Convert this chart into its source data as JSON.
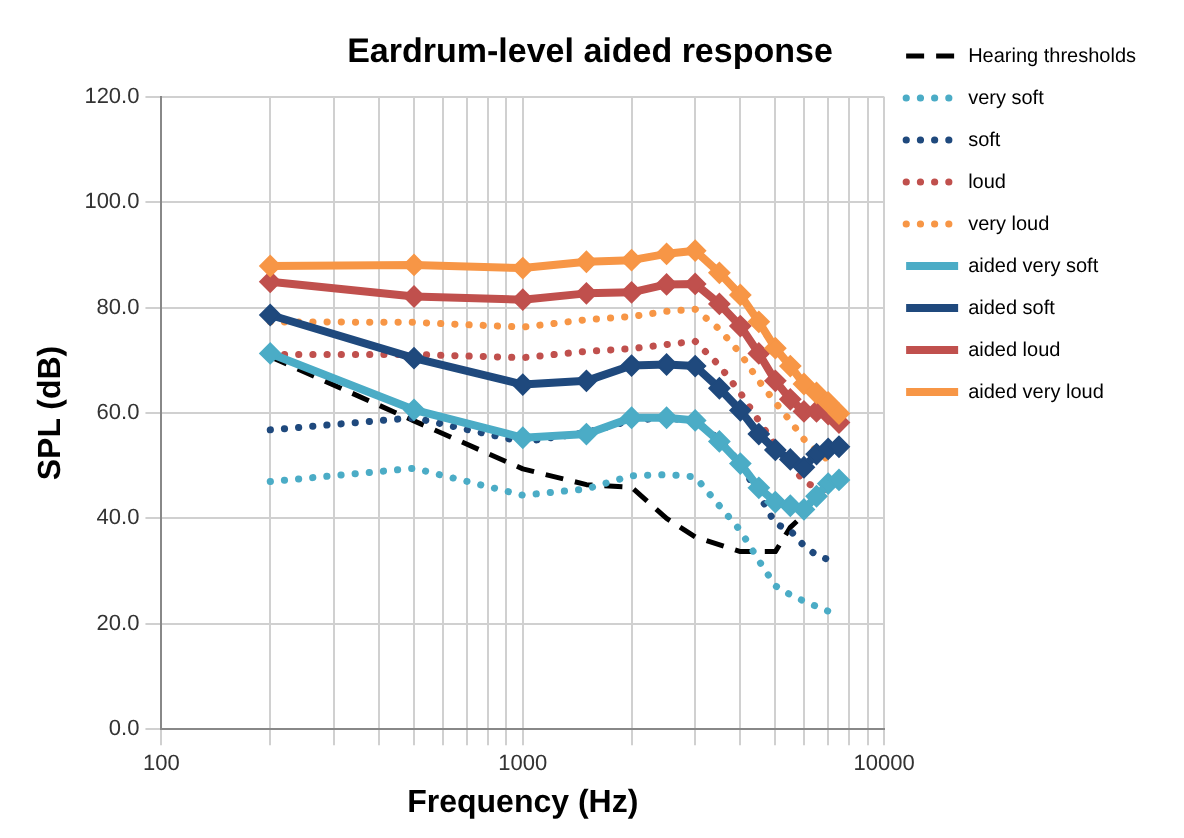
{
  "chart_data": {
    "type": "line",
    "title": "Eardrum-level aided response",
    "xlabel": "Frequency (Hz)",
    "ylabel": "SPL (dB)",
    "log": "x",
    "grid": true,
    "legend": "right",
    "xlim": [
      100,
      10000
    ],
    "xticks": [
      100,
      {
        "value": 200,
        "label": null
      },
      {
        "value": 300,
        "label": null
      },
      {
        "value": 400,
        "label": null
      },
      {
        "value": 500,
        "label": null
      },
      {
        "value": 600,
        "label": null
      },
      {
        "value": 700,
        "label": null
      },
      {
        "value": 800,
        "label": null
      },
      {
        "value": 900,
        "label": null
      },
      1000,
      {
        "value": 2000,
        "label": null
      },
      {
        "value": 3000,
        "label": null
      },
      {
        "value": 4000,
        "label": null
      },
      {
        "value": 5000,
        "label": null
      },
      {
        "value": 6000,
        "label": null
      },
      {
        "value": 7000,
        "label": null
      },
      {
        "value": 8000,
        "label": null
      },
      {
        "value": 9000,
        "label": null
      },
      10000
    ],
    "ylim": [
      0,
      120
    ],
    "yticks": [
      {
        "value": 0,
        "label": "0.0"
      },
      {
        "value": 20,
        "label": "20.0"
      },
      {
        "value": 40,
        "label": "40.0"
      },
      {
        "value": 60,
        "label": "60.0"
      },
      {
        "value": 80,
        "label": "80.0"
      },
      {
        "value": 100,
        "label": "100.0"
      },
      {
        "value": 120,
        "label": "120.0"
      }
    ],
    "series": [
      {
        "name": "Hearing thresholds",
        "color": "#000000",
        "line_style": "dashed",
        "marker": "none",
        "x": [
          200,
          500,
          1000,
          1500,
          2000,
          2500,
          3000,
          4000,
          5000,
          5500,
          6000
        ],
        "values": [
          70.7,
          58.5,
          49.4,
          46.4,
          45.9,
          40,
          36.5,
          33.7,
          33.7,
          38.3,
          40.7
        ]
      },
      {
        "name": "very soft",
        "color": "#4bacc6",
        "line_style": "dotted",
        "marker": "none",
        "x": [
          200,
          500,
          1000,
          1500,
          2000,
          2500,
          3000,
          3500,
          4000,
          4500,
          5000,
          5500,
          6000,
          6500,
          7000
        ],
        "values": [
          47,
          49.5,
          44.4,
          45.6,
          48.1,
          48.3,
          47.9,
          42.4,
          37.7,
          32,
          27.2,
          25.5,
          24.3,
          23.3,
          22.4
        ]
      },
      {
        "name": "soft",
        "color": "#1f497d",
        "line_style": "dotted",
        "marker": "none",
        "x": [
          200,
          500,
          1000,
          1500,
          2000,
          2500,
          3000,
          3500,
          4000,
          4500,
          5000,
          5500,
          6000,
          6500,
          7000
        ],
        "values": [
          56.8,
          59.1,
          54.5,
          56.3,
          58.6,
          59.1,
          58.4,
          55,
          50.4,
          44.6,
          39,
          37.7,
          34.8,
          33,
          32.2
        ]
      },
      {
        "name": "loud",
        "color": "#c0504d",
        "line_style": "dotted",
        "marker": "none",
        "x": [
          200,
          500,
          1000,
          1500,
          2000,
          2500,
          3000,
          3500,
          4000,
          4500,
          5000,
          5500,
          6000,
          6500,
          7000
        ],
        "values": [
          71.1,
          71.1,
          70.5,
          71.7,
          72.2,
          73,
          73.6,
          69,
          63.8,
          58.5,
          53.9,
          50.4,
          47,
          45.8,
          45.2
        ]
      },
      {
        "name": "very loud",
        "color": "#f79646",
        "line_style": "dotted",
        "marker": "none",
        "x": [
          200,
          500,
          1000,
          1500,
          2000,
          2500,
          3000,
          3500,
          4000,
          4500,
          5000,
          5500,
          6000,
          6500,
          7000
        ],
        "values": [
          77.3,
          77.2,
          76.3,
          77.7,
          78.3,
          79.3,
          79.7,
          75.9,
          71.3,
          66.1,
          62,
          58.5,
          55,
          52.8,
          51.1
        ]
      },
      {
        "name": "aided very soft",
        "color": "#4bacc6",
        "line_style": "solid",
        "marker": "diamond",
        "x": [
          200,
          500,
          1000,
          1500,
          2000,
          2500,
          3000,
          3500,
          4000,
          4500,
          5000,
          5500,
          6000,
          6500,
          7000,
          7500
        ],
        "values": [
          71.3,
          60.6,
          55.3,
          56,
          59.1,
          59.1,
          58.6,
          54.6,
          50.4,
          45.8,
          43.1,
          42.4,
          41.7,
          44.2,
          46.6,
          47.3
        ]
      },
      {
        "name": "aided soft",
        "color": "#1f497d",
        "line_style": "solid",
        "marker": "diamond",
        "x": [
          200,
          500,
          1000,
          1500,
          2000,
          2500,
          3000,
          3500,
          4000,
          4500,
          5000,
          5500,
          6000,
          6500,
          7000,
          7500
        ],
        "values": [
          78.6,
          70.4,
          65.4,
          66.1,
          69,
          69.2,
          68.9,
          64.7,
          60.5,
          56,
          53,
          51.2,
          49.7,
          52.2,
          53.2,
          53.6
        ]
      },
      {
        "name": "aided loud",
        "color": "#c0504d",
        "line_style": "solid",
        "marker": "diamond",
        "x": [
          200,
          500,
          1000,
          1500,
          2000,
          2500,
          3000,
          3500,
          4000,
          4500,
          5000,
          5500,
          6000,
          6500,
          7000,
          7500
        ],
        "values": [
          84.9,
          82.1,
          81.5,
          82.7,
          82.9,
          84.4,
          84.5,
          80.7,
          76.5,
          71.3,
          66.1,
          62.6,
          60.3,
          60.3,
          59.8,
          58.2
        ]
      },
      {
        "name": "aided very loud",
        "color": "#f79646",
        "line_style": "solid",
        "marker": "diamond",
        "x": [
          200,
          500,
          1000,
          1500,
          2000,
          2500,
          3000,
          3500,
          4000,
          4500,
          5000,
          5500,
          6000,
          6500,
          7000,
          7500
        ],
        "values": [
          87.9,
          88.1,
          87.5,
          88.7,
          89,
          90.2,
          90.8,
          86.6,
          82.4,
          77.3,
          72.3,
          68.9,
          65.5,
          63.8,
          62,
          59.9
        ]
      }
    ]
  }
}
